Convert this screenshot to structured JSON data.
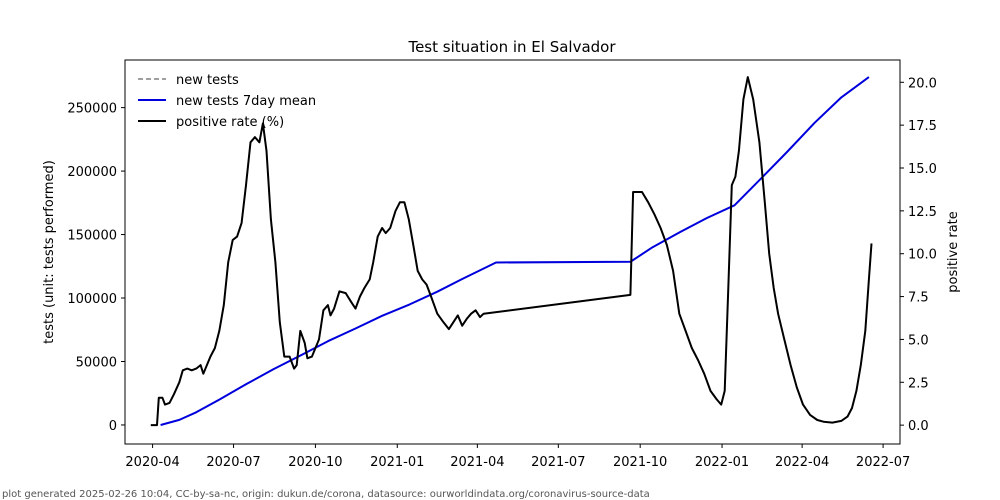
{
  "chart_data": {
    "type": "line",
    "title": "Test situation in El Salvador",
    "ylabel": "tests (unit: tests performed)",
    "ylabel_right": "positive rate",
    "xlabel": "",
    "xlim": [
      "2020-03-01",
      "2022-07-20"
    ],
    "ylim": [
      -15000,
      287500
    ],
    "ylim_right": [
      -1.1,
      21.3
    ],
    "x_ticks": [
      "2020-04",
      "2020-07",
      "2020-10",
      "2021-01",
      "2021-04",
      "2021-07",
      "2021-10",
      "2022-01",
      "2022-04",
      "2022-07"
    ],
    "y_ticks": [
      0,
      50000,
      100000,
      150000,
      200000,
      250000
    ],
    "y_ticks_right": [
      "0.0",
      "2.5",
      "5.0",
      "7.5",
      "10.0",
      "12.5",
      "15.0",
      "17.5",
      "20.0"
    ],
    "legend_position": "top-left",
    "grid": false,
    "series": [
      {
        "name": "new tests",
        "axis": "left",
        "style": "dashed",
        "color": "#808080",
        "points": []
      },
      {
        "name": "new tests 7day mean",
        "axis": "left",
        "style": "solid",
        "color": "#0000dd",
        "points": [
          [
            "2020-04-10",
            0
          ],
          [
            "2020-05-01",
            4000
          ],
          [
            "2020-05-20",
            10000
          ],
          [
            "2020-06-15",
            20000
          ],
          [
            "2020-07-15",
            32000
          ],
          [
            "2020-08-15",
            44000
          ],
          [
            "2020-09-15",
            55000
          ],
          [
            "2020-10-15",
            66000
          ],
          [
            "2020-11-15",
            76000
          ],
          [
            "2020-12-15",
            86000
          ],
          [
            "2021-01-15",
            95000
          ],
          [
            "2021-02-15",
            105000
          ],
          [
            "2021-03-15",
            115000
          ],
          [
            "2021-04-22",
            128000
          ],
          [
            "2021-09-20",
            128500
          ],
          [
            "2021-10-15",
            140000
          ],
          [
            "2021-11-15",
            152000
          ],
          [
            "2021-12-15",
            163000
          ],
          [
            "2022-01-15",
            173000
          ],
          [
            "2022-02-15",
            195000
          ],
          [
            "2022-03-15",
            215000
          ],
          [
            "2022-04-15",
            238000
          ],
          [
            "2022-05-15",
            258000
          ],
          [
            "2022-06-15",
            274000
          ]
        ]
      },
      {
        "name": "positive rate (%)",
        "axis": "right",
        "style": "solid",
        "color": "#000000",
        "points": [
          [
            "2020-03-30",
            0
          ],
          [
            "2020-04-06",
            0
          ],
          [
            "2020-04-08",
            1.6
          ],
          [
            "2020-04-12",
            1.6
          ],
          [
            "2020-04-15",
            1.2
          ],
          [
            "2020-04-20",
            1.3
          ],
          [
            "2020-04-25",
            1.8
          ],
          [
            "2020-05-01",
            2.5
          ],
          [
            "2020-05-05",
            3.2
          ],
          [
            "2020-05-10",
            3.3
          ],
          [
            "2020-05-15",
            3.2
          ],
          [
            "2020-05-20",
            3.3
          ],
          [
            "2020-05-25",
            3.5
          ],
          [
            "2020-05-28",
            3.0
          ],
          [
            "2020-06-01",
            3.5
          ],
          [
            "2020-06-05",
            4.0
          ],
          [
            "2020-06-10",
            4.5
          ],
          [
            "2020-06-15",
            5.5
          ],
          [
            "2020-06-20",
            7.0
          ],
          [
            "2020-06-25",
            9.5
          ],
          [
            "2020-06-30",
            10.8
          ],
          [
            "2020-07-05",
            11.0
          ],
          [
            "2020-07-10",
            11.8
          ],
          [
            "2020-07-15",
            14.0
          ],
          [
            "2020-07-20",
            16.5
          ],
          [
            "2020-07-25",
            16.8
          ],
          [
            "2020-07-30",
            16.5
          ],
          [
            "2020-08-03",
            17.6
          ],
          [
            "2020-08-07",
            16.0
          ],
          [
            "2020-08-12",
            12.0
          ],
          [
            "2020-08-17",
            9.5
          ],
          [
            "2020-08-22",
            6.0
          ],
          [
            "2020-08-27",
            4.0
          ],
          [
            "2020-09-02",
            4.0
          ],
          [
            "2020-09-07",
            3.3
          ],
          [
            "2020-09-10",
            3.5
          ],
          [
            "2020-09-14",
            5.5
          ],
          [
            "2020-09-19",
            4.8
          ],
          [
            "2020-09-22",
            3.9
          ],
          [
            "2020-09-27",
            4.0
          ],
          [
            "2020-10-05",
            5.0
          ],
          [
            "2020-10-10",
            6.7
          ],
          [
            "2020-10-15",
            7.0
          ],
          [
            "2020-10-18",
            6.4
          ],
          [
            "2020-10-22",
            6.8
          ],
          [
            "2020-10-28",
            7.8
          ],
          [
            "2020-11-04",
            7.7
          ],
          [
            "2020-11-10",
            7.2
          ],
          [
            "2020-11-15",
            6.8
          ],
          [
            "2020-11-20",
            7.5
          ],
          [
            "2020-11-25",
            8.0
          ],
          [
            "2020-12-01",
            8.5
          ],
          [
            "2020-12-05",
            9.5
          ],
          [
            "2020-12-10",
            11.0
          ],
          [
            "2020-12-15",
            11.5
          ],
          [
            "2020-12-19",
            11.2
          ],
          [
            "2020-12-24",
            11.5
          ],
          [
            "2020-12-30",
            12.5
          ],
          [
            "2021-01-04",
            13.0
          ],
          [
            "2021-01-09",
            13.0
          ],
          [
            "2021-01-14",
            12.0
          ],
          [
            "2021-01-19",
            10.5
          ],
          [
            "2021-01-24",
            9.0
          ],
          [
            "2021-01-29",
            8.5
          ],
          [
            "2021-02-03",
            8.2
          ],
          [
            "2021-02-08",
            7.5
          ],
          [
            "2021-02-15",
            6.5
          ],
          [
            "2021-02-22",
            6.0
          ],
          [
            "2021-02-28",
            5.6
          ],
          [
            "2021-03-05",
            6.0
          ],
          [
            "2021-03-10",
            6.4
          ],
          [
            "2021-03-15",
            5.8
          ],
          [
            "2021-03-20",
            6.2
          ],
          [
            "2021-03-25",
            6.5
          ],
          [
            "2021-03-30",
            6.7
          ],
          [
            "2021-04-04",
            6.3
          ],
          [
            "2021-04-08",
            6.5
          ],
          [
            "2021-09-20",
            7.6
          ],
          [
            "2021-09-23",
            13.6
          ],
          [
            "2021-09-28",
            13.6
          ],
          [
            "2021-10-03",
            13.6
          ],
          [
            "2021-10-10",
            13.0
          ],
          [
            "2021-10-17",
            12.3
          ],
          [
            "2021-10-24",
            11.5
          ],
          [
            "2021-10-31",
            10.5
          ],
          [
            "2021-11-07",
            9.0
          ],
          [
            "2021-11-14",
            6.5
          ],
          [
            "2021-11-21",
            5.5
          ],
          [
            "2021-11-28",
            4.5
          ],
          [
            "2021-12-05",
            3.8
          ],
          [
            "2021-12-12",
            3.0
          ],
          [
            "2021-12-19",
            2.0
          ],
          [
            "2021-12-26",
            1.5
          ],
          [
            "2021-12-31",
            1.2
          ],
          [
            "2022-01-04",
            2.0
          ],
          [
            "2022-01-08",
            8.0
          ],
          [
            "2022-01-12",
            14.0
          ],
          [
            "2022-01-16",
            14.5
          ],
          [
            "2022-01-20",
            16.0
          ],
          [
            "2022-01-25",
            19.0
          ],
          [
            "2022-01-30",
            20.3
          ],
          [
            "2022-02-05",
            19.0
          ],
          [
            "2022-02-12",
            16.5
          ],
          [
            "2022-02-18",
            13.0
          ],
          [
            "2022-02-23",
            10.0
          ],
          [
            "2022-02-28",
            8.0
          ],
          [
            "2022-03-05",
            6.5
          ],
          [
            "2022-03-12",
            5.0
          ],
          [
            "2022-03-19",
            3.5
          ],
          [
            "2022-03-26",
            2.2
          ],
          [
            "2022-04-02",
            1.2
          ],
          [
            "2022-04-10",
            0.6
          ],
          [
            "2022-04-18",
            0.3
          ],
          [
            "2022-04-25",
            0.2
          ],
          [
            "2022-05-05",
            0.15
          ],
          [
            "2022-05-15",
            0.25
          ],
          [
            "2022-05-22",
            0.5
          ],
          [
            "2022-05-27",
            1.0
          ],
          [
            "2022-06-01",
            2.0
          ],
          [
            "2022-06-06",
            3.5
          ],
          [
            "2022-06-11",
            5.5
          ],
          [
            "2022-06-15",
            8.5
          ],
          [
            "2022-06-18",
            10.6
          ]
        ]
      }
    ]
  },
  "footer": "plot generated 2025-02-26 10:04, CC-by-sa-nc, origin: dukun.de/corona, datasource: ourworldindata.org/coronavirus-source-data"
}
